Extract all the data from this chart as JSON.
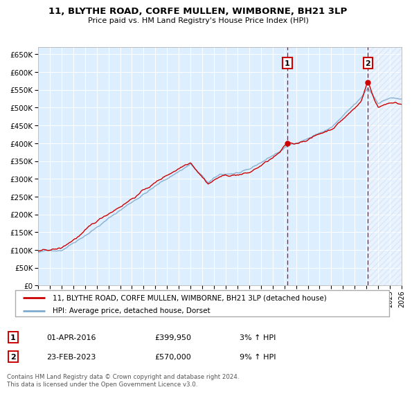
{
  "title": "11, BLYTHE ROAD, CORFE MULLEN, WIMBORNE, BH21 3LP",
  "subtitle": "Price paid vs. HM Land Registry's House Price Index (HPI)",
  "legend_line1": "11, BLYTHE ROAD, CORFE MULLEN, WIMBORNE, BH21 3LP (detached house)",
  "legend_line2": "HPI: Average price, detached house, Dorset",
  "annotation1_date": "01-APR-2016",
  "annotation1_price": "£399,950",
  "annotation1_hpi": "3% ↑ HPI",
  "annotation2_date": "23-FEB-2023",
  "annotation2_price": "£570,000",
  "annotation2_hpi": "9% ↑ HPI",
  "footnote": "Contains HM Land Registry data © Crown copyright and database right 2024.\nThis data is licensed under the Open Government Licence v3.0.",
  "red_color": "#cc0000",
  "blue_color": "#7faacc",
  "bg_color": "#ddeeff",
  "grid_color": "#ffffff",
  "ylim": [
    0,
    670000
  ],
  "sale1_year": 2016.25,
  "sale1_value": 399950,
  "sale2_year": 2023.12,
  "sale2_value": 570000,
  "xmin": 1995,
  "xmax": 2026
}
